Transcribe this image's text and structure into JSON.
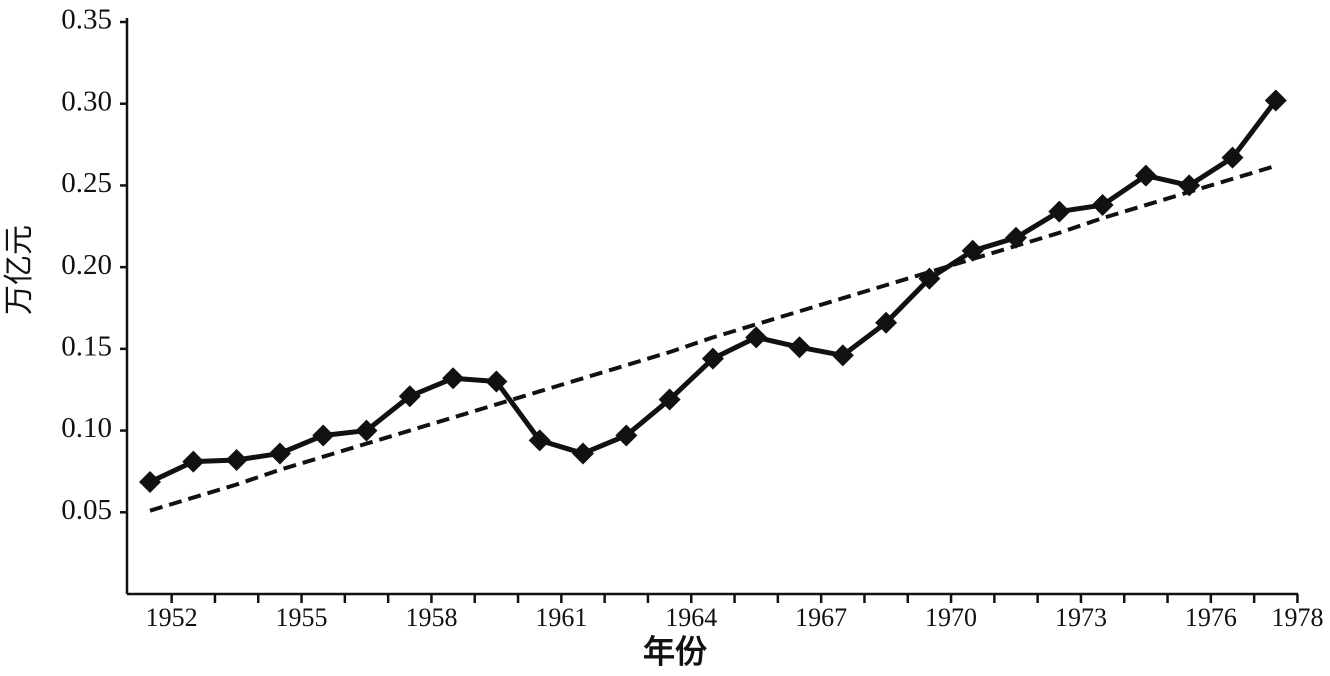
{
  "chart_data": {
    "type": "line",
    "x_label": "年份",
    "y_label": "万亿元",
    "categories": [
      "1952",
      null,
      null,
      "1955",
      null,
      null,
      "1958",
      null,
      null,
      "1961",
      null,
      null,
      "1964",
      null,
      null,
      "1967",
      null,
      null,
      "1970",
      null,
      null,
      "1973",
      null,
      null,
      "1976",
      null,
      "1978"
    ],
    "series": [
      {
        "color": "#111111",
        "marker": "diamond",
        "dashed": false,
        "values": [
          0.0685,
          0.081,
          0.082,
          0.086,
          0.097,
          0.1,
          0.121,
          0.132,
          0.13,
          0.094,
          0.086,
          0.097,
          0.119,
          0.144,
          0.157,
          0.151,
          0.146,
          0.166,
          0.193,
          0.21,
          0.218,
          0.234,
          0.238,
          0.256,
          0.25,
          0.267,
          0.302
        ]
      },
      {
        "color": "#111111",
        "marker": null,
        "dashed": true,
        "values": [
          0.051,
          0.059,
          0.067,
          0.076,
          0.084,
          0.092,
          0.1,
          0.108,
          0.116,
          0.124,
          0.132,
          0.14,
          0.148,
          0.157,
          0.165,
          0.173,
          0.181,
          0.189,
          0.197,
          0.205,
          0.213,
          0.221,
          0.23,
          0.238,
          0.246,
          0.254,
          0.262
        ]
      }
    ],
    "ylim": [
      0,
      0.35
    ],
    "yticks": [
      0.05,
      {
        "value": 0.1,
        "label": "0.10"
      },
      0.15,
      {
        "value": 0.2,
        "label": "0.20"
      },
      0.25,
      {
        "value": 0.3,
        "label": "0.30"
      },
      0.35
    ],
    "grid": false
  }
}
